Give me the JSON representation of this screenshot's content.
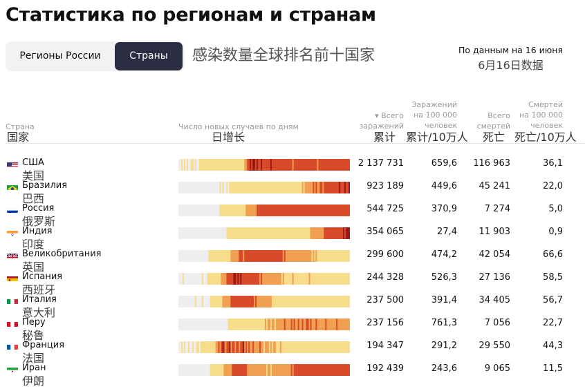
{
  "page_title": "Статистика по регионам и странам",
  "subtitle_cn": "感染数量全球排名前十国家",
  "as_of": {
    "label": "По данным на 16 июня",
    "label_cn": "6月16日数据"
  },
  "tabs": [
    {
      "label": "Регионы России",
      "active": false
    },
    {
      "label": "Страны",
      "active": true
    }
  ],
  "columns": {
    "country": {
      "label": "Страна",
      "label_cn": "国家"
    },
    "daily": {
      "label": "Число новых случаев по дням",
      "label_cn": "日增长"
    },
    "total": {
      "label_line1": "▾ Всего",
      "label_line2": "заражений",
      "label_cn": "累计"
    },
    "per100k": {
      "label_line1": "Заражений",
      "label_line2": "на 100 000",
      "label_line3": "человек",
      "label_cn": "累计/10万人"
    },
    "deaths": {
      "label_line1": "Всего",
      "label_line2": "смертей",
      "label_cn": "死亡"
    },
    "deaths_per100k": {
      "label_line1": "Смертей",
      "label_line2": "на 100 000",
      "label_line3": "человек",
      "label_cn": "死亡/10万人"
    }
  },
  "colors": {
    "empty": "#eeeeee",
    "low": "#f7dc8c",
    "mid": "#f0a050",
    "high": "#d94a2a",
    "max": "#9c1a14"
  },
  "chart_data": {
    "type": "table",
    "rows": [
      {
        "country": "США",
        "country_cn": "美国",
        "flag": "us-flag",
        "total": "2 137 731",
        "per100k": "659,6",
        "deaths": "116 963",
        "deaths_per100k": "36,1"
      },
      {
        "country": "Бразилия",
        "country_cn": "巴西",
        "flag": "brazil-flag",
        "total": "923 189",
        "per100k": "449,6",
        "deaths": "45 241",
        "deaths_per100k": "22,0"
      },
      {
        "country": "Россия",
        "country_cn": "俄罗斯",
        "flag": "russia-flag",
        "total": "544 725",
        "per100k": "370,9",
        "deaths": "7 274",
        "deaths_per100k": "5,0"
      },
      {
        "country": "Индия",
        "country_cn": "印度",
        "flag": "india-flag",
        "total": "354 065",
        "per100k": "27,4",
        "deaths": "11 903",
        "deaths_per100k": "0,9"
      },
      {
        "country": "Великобритания",
        "country_cn": "英国",
        "flag": "uk-flag",
        "total": "299 600",
        "per100k": "474,2",
        "deaths": "42 054",
        "deaths_per100k": "66,6"
      },
      {
        "country": "Испания",
        "country_cn": "西班牙",
        "flag": "spain-flag",
        "total": "244 328",
        "per100k": "526,3",
        "deaths": "27 136",
        "deaths_per100k": "58,5"
      },
      {
        "country": "Италия",
        "country_cn": "意大利",
        "flag": "italy-flag",
        "total": "237 500",
        "per100k": "391,4",
        "deaths": "34 405",
        "deaths_per100k": "56,7"
      },
      {
        "country": "Перу",
        "country_cn": "秘鲁",
        "flag": "peru-flag",
        "total": "237 156",
        "per100k": "761,3",
        "deaths": "7 056",
        "deaths_per100k": "22,7"
      },
      {
        "country": "Франция",
        "country_cn": "法国",
        "flag": "france-flag",
        "total": "194 347",
        "per100k": "291,2",
        "deaths": "29 550",
        "deaths_per100k": "44,3"
      },
      {
        "country": "Иран",
        "country_cn": "伊朗",
        "flag": "iran-flag",
        "total": "192 439",
        "per100k": "243,6",
        "deaths": "9 065",
        "deaths_per100k": "11,5"
      }
    ],
    "daily_intensity_note_levels": [
      0,
      1,
      2,
      3,
      4
    ],
    "daily_intensity": [
      [
        0,
        0,
        1,
        0,
        1,
        0,
        1,
        0,
        0,
        1,
        1,
        0,
        1,
        0,
        0,
        1,
        1,
        1,
        1,
        1,
        1,
        1,
        1,
        1,
        1,
        1,
        1,
        1,
        1,
        1,
        1,
        1,
        1,
        1,
        1,
        1,
        1,
        1,
        1,
        1,
        1,
        1,
        1,
        1,
        1,
        1,
        1,
        1,
        2,
        2,
        3,
        3,
        4,
        3,
        4,
        4,
        3,
        4,
        3,
        3,
        4,
        3,
        3,
        3,
        3,
        3,
        3,
        4,
        3,
        3,
        3,
        3,
        3,
        3,
        3,
        3,
        3,
        3,
        3,
        3,
        3,
        3,
        3,
        2,
        3,
        3,
        3,
        3,
        3,
        3,
        3,
        3,
        3,
        3,
        3,
        3,
        3,
        3,
        3,
        3,
        3,
        2,
        3,
        3,
        3,
        3,
        3,
        3,
        3,
        3,
        3,
        3,
        3,
        3,
        3,
        3,
        3,
        3,
        3,
        3,
        3,
        3,
        3,
        3,
        3
      ],
      [
        0,
        0,
        0,
        0,
        0,
        0,
        0,
        0,
        0,
        0,
        0,
        0,
        0,
        0,
        0,
        0,
        0,
        0,
        0,
        0,
        0,
        0,
        0,
        0,
        0,
        0,
        0,
        0,
        0,
        0,
        1,
        0,
        1,
        0,
        0,
        1,
        0,
        1,
        1,
        1,
        1,
        1,
        1,
        1,
        1,
        1,
        1,
        1,
        1,
        1,
        1,
        1,
        1,
        1,
        1,
        1,
        1,
        1,
        1,
        1,
        1,
        1,
        1,
        1,
        1,
        1,
        1,
        1,
        1,
        1,
        1,
        1,
        1,
        1,
        1,
        1,
        1,
        1,
        1,
        1,
        1,
        1,
        1,
        1,
        1,
        1,
        1,
        1,
        1,
        1,
        2,
        1,
        2,
        2,
        2,
        2,
        2,
        2,
        3,
        2,
        3,
        2,
        2,
        3,
        3,
        2,
        3,
        3,
        3,
        3,
        3,
        3,
        3,
        3,
        3,
        3,
        3,
        4,
        3,
        3,
        3,
        4,
        3,
        3,
        4
      ],
      [
        0,
        0,
        0,
        0,
        0,
        0,
        0,
        0,
        0,
        0,
        0,
        0,
        0,
        0,
        0,
        0,
        0,
        0,
        0,
        0,
        0,
        0,
        0,
        0,
        0,
        0,
        0,
        0,
        0,
        0,
        1,
        1,
        1,
        1,
        1,
        1,
        1,
        1,
        1,
        1,
        1,
        1,
        1,
        1,
        1,
        1,
        1,
        1,
        1,
        2,
        2,
        2,
        2,
        2,
        2,
        2,
        2,
        3,
        3,
        3,
        3,
        3,
        3,
        3,
        3,
        3,
        3,
        3,
        3,
        3,
        3,
        3,
        3,
        3,
        3,
        3,
        3,
        3,
        3,
        3,
        3,
        3,
        3,
        3,
        3,
        3,
        3,
        3,
        3,
        3,
        3,
        3,
        3,
        3,
        3,
        3,
        3,
        3,
        3,
        3,
        3,
        3,
        3,
        3,
        3,
        3,
        3,
        3,
        3,
        3,
        3,
        3,
        3,
        3,
        3,
        3,
        3,
        3,
        3,
        3,
        3,
        3,
        3,
        3,
        3
      ],
      [
        0,
        0,
        0,
        0,
        0,
        0,
        0,
        0,
        0,
        0,
        0,
        0,
        0,
        0,
        0,
        0,
        0,
        0,
        0,
        0,
        0,
        0,
        0,
        0,
        0,
        0,
        0,
        0,
        0,
        0,
        0,
        0,
        0,
        0,
        0,
        1,
        1,
        1,
        1,
        1,
        1,
        1,
        1,
        1,
        1,
        1,
        1,
        1,
        1,
        1,
        1,
        1,
        1,
        1,
        1,
        1,
        1,
        1,
        1,
        1,
        1,
        1,
        1,
        1,
        1,
        1,
        1,
        1,
        1,
        1,
        1,
        1,
        1,
        1,
        1,
        1,
        1,
        1,
        1,
        1,
        1,
        1,
        1,
        1,
        1,
        1,
        1,
        1,
        1,
        1,
        1,
        1,
        1,
        1,
        1,
        1,
        2,
        2,
        2,
        2,
        2,
        2,
        2,
        2,
        2,
        2,
        3,
        3,
        3,
        3,
        3,
        3,
        3,
        3,
        3,
        3,
        3,
        3,
        3,
        3,
        4,
        3,
        4,
        4,
        4
      ],
      [
        0,
        0,
        0,
        0,
        0,
        0,
        0,
        0,
        0,
        0,
        0,
        0,
        0,
        0,
        0,
        0,
        0,
        0,
        0,
        0,
        0,
        0,
        1,
        1,
        1,
        1,
        1,
        1,
        1,
        1,
        1,
        1,
        1,
        1,
        1,
        1,
        1,
        1,
        2,
        2,
        2,
        2,
        2,
        2,
        3,
        3,
        3,
        2,
        3,
        3,
        3,
        3,
        3,
        3,
        3,
        3,
        3,
        3,
        3,
        3,
        3,
        3,
        3,
        3,
        3,
        3,
        3,
        3,
        3,
        3,
        3,
        3,
        3,
        3,
        3,
        3,
        2,
        3,
        2,
        2,
        2,
        2,
        2,
        2,
        2,
        2,
        2,
        2,
        2,
        2,
        2,
        2,
        2,
        2,
        2,
        2,
        2,
        1,
        2,
        1,
        2,
        1,
        1,
        1,
        1,
        1,
        1,
        1,
        1,
        1,
        1,
        1,
        1,
        1,
        1,
        1,
        1,
        1,
        1,
        1,
        1,
        1,
        1,
        1,
        1
      ],
      [
        0,
        0,
        0,
        1,
        0,
        0,
        0,
        0,
        0,
        0,
        0,
        0,
        0,
        0,
        0,
        0,
        0,
        1,
        0,
        0,
        0,
        1,
        1,
        1,
        1,
        1,
        1,
        1,
        1,
        1,
        1,
        2,
        2,
        2,
        2,
        3,
        3,
        3,
        3,
        3,
        4,
        4,
        3,
        4,
        3,
        4,
        3,
        3,
        3,
        3,
        3,
        3,
        3,
        3,
        3,
        3,
        3,
        3,
        3,
        2,
        3,
        2,
        2,
        2,
        2,
        2,
        2,
        2,
        2,
        2,
        2,
        2,
        2,
        2,
        2,
        1,
        2,
        1,
        1,
        1,
        1,
        1,
        1,
        2,
        1,
        1,
        1,
        1,
        1,
        1,
        1,
        1,
        1,
        1,
        1,
        2,
        1,
        1,
        1,
        1,
        1,
        1,
        1,
        1,
        1,
        1,
        1,
        1,
        1,
        1,
        1,
        1,
        1,
        1,
        1,
        1,
        1,
        1,
        1,
        1,
        1,
        1,
        1,
        1,
        1
      ],
      [
        0,
        0,
        0,
        0,
        0,
        0,
        0,
        0,
        0,
        0,
        0,
        0,
        1,
        0,
        0,
        0,
        0,
        1,
        0,
        0,
        0,
        0,
        0,
        1,
        1,
        1,
        1,
        1,
        1,
        1,
        1,
        1,
        2,
        2,
        2,
        2,
        2,
        2,
        3,
        3,
        3,
        3,
        3,
        3,
        3,
        3,
        3,
        3,
        3,
        3,
        3,
        3,
        3,
        3,
        3,
        2,
        3,
        2,
        2,
        2,
        2,
        2,
        2,
        2,
        2,
        2,
        2,
        2,
        1,
        1,
        1,
        1,
        1,
        1,
        1,
        1,
        1,
        1,
        1,
        1,
        1,
        1,
        1,
        1,
        1,
        1,
        1,
        1,
        1,
        1,
        1,
        1,
        1,
        1,
        1,
        1,
        1,
        1,
        1,
        1,
        1,
        1,
        1,
        1,
        1,
        1,
        1,
        1,
        1,
        1,
        1,
        1,
        1,
        1,
        1,
        1,
        1,
        1,
        1,
        1,
        1,
        1,
        1,
        1,
        1
      ],
      [
        0,
        0,
        0,
        0,
        0,
        0,
        0,
        0,
        0,
        0,
        0,
        0,
        0,
        0,
        0,
        0,
        0,
        0,
        0,
        0,
        0,
        0,
        0,
        0,
        0,
        0,
        0,
        0,
        0,
        0,
        0,
        0,
        0,
        0,
        0,
        0,
        1,
        1,
        1,
        1,
        1,
        1,
        1,
        1,
        1,
        1,
        1,
        1,
        1,
        1,
        1,
        1,
        1,
        1,
        1,
        1,
        1,
        1,
        1,
        1,
        1,
        1,
        1,
        2,
        1,
        2,
        2,
        1,
        2,
        2,
        1,
        2,
        2,
        2,
        2,
        2,
        2,
        3,
        2,
        2,
        2,
        2,
        3,
        2,
        3,
        2,
        2,
        3,
        2,
        2,
        3,
        2,
        2,
        3,
        3,
        2,
        3,
        2,
        2,
        2,
        3,
        2,
        2,
        2,
        2,
        2,
        2,
        3,
        2,
        2,
        2,
        2,
        2,
        2,
        2,
        3,
        2,
        2,
        2,
        2,
        2,
        2,
        2,
        2,
        2
      ],
      [
        0,
        0,
        1,
        0,
        1,
        0,
        0,
        1,
        0,
        0,
        1,
        0,
        0,
        1,
        1,
        0,
        1,
        1,
        1,
        1,
        1,
        1,
        1,
        1,
        1,
        1,
        1,
        2,
        2,
        3,
        2,
        3,
        4,
        3,
        2,
        3,
        3,
        4,
        2,
        3,
        3,
        2,
        3,
        3,
        2,
        3,
        3,
        4,
        2,
        3,
        2,
        3,
        2,
        2,
        3,
        2,
        2,
        2,
        2,
        3,
        2,
        2,
        1,
        2,
        2,
        2,
        1,
        2,
        1,
        2,
        2,
        1,
        1,
        1,
        2,
        1,
        1,
        1,
        1,
        1,
        1,
        1,
        1,
        1,
        1,
        1,
        1,
        1,
        1,
        1,
        1,
        1,
        1,
        1,
        1,
        1,
        1,
        1,
        1,
        1,
        1,
        1,
        1,
        1,
        1,
        1,
        1,
        1,
        1,
        1,
        1,
        1,
        1,
        1,
        1,
        1,
        1,
        1,
        1,
        1,
        1,
        1,
        1,
        1,
        1
      ],
      [
        0,
        0,
        0,
        0,
        0,
        0,
        0,
        0,
        0,
        0,
        0,
        0,
        0,
        0,
        0,
        0,
        0,
        0,
        0,
        0,
        0,
        0,
        0,
        1,
        1,
        1,
        1,
        1,
        1,
        1,
        1,
        1,
        1,
        2,
        2,
        2,
        2,
        2,
        2,
        3,
        3,
        3,
        3,
        3,
        3,
        3,
        3,
        3,
        3,
        3,
        2,
        2,
        2,
        2,
        2,
        2,
        2,
        2,
        2,
        2,
        2,
        2,
        2,
        2,
        1,
        2,
        2,
        1,
        2,
        2,
        2,
        2,
        2,
        2,
        2,
        2,
        2,
        2,
        2,
        2,
        2,
        2,
        3,
        2,
        3,
        3,
        3,
        3,
        3,
        3,
        3,
        3,
        3,
        3,
        3,
        3,
        3,
        3,
        3,
        3,
        3,
        3,
        3,
        3,
        3,
        3,
        3,
        3,
        3,
        3,
        3,
        3,
        3,
        3,
        3,
        3,
        3,
        3,
        3,
        3,
        3,
        3,
        3,
        3,
        3
      ]
    ]
  }
}
